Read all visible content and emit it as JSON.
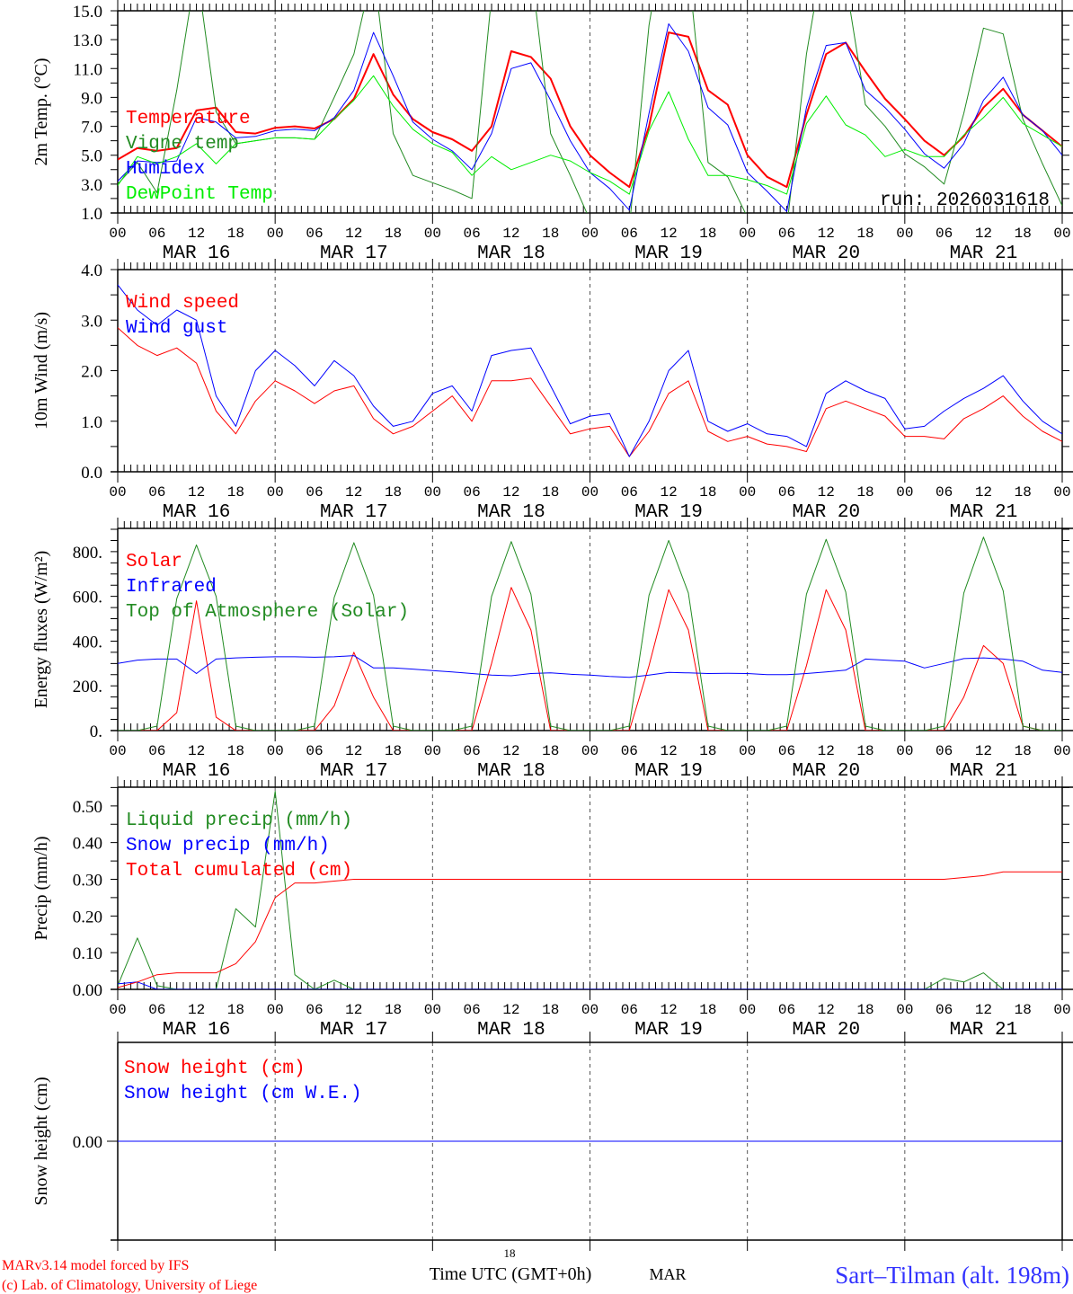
{
  "time_axis": {
    "hours_ticks": [
      "00",
      "06",
      "12",
      "18"
    ],
    "days": [
      "MAR 16",
      "MAR 17",
      "MAR 18",
      "MAR 19",
      "MAR 20",
      "MAR 21"
    ],
    "end_label": "00",
    "step_hours": 3
  },
  "run_label": "run: 2026031618",
  "footer": {
    "model": "MARv3.14 model forced by IFS",
    "copyright": "(c) Lab. of Climatology, University of Liege",
    "small_label": "18",
    "xlabel": "Time UTC (GMT+0h)",
    "mar": "MAR",
    "station": "Sart–Tilman (alt. 198m)"
  },
  "chart_data": [
    {
      "type": "line",
      "ylabel": "2m Temp. (°C)",
      "ylim": [
        1,
        15
      ],
      "yminor": 1,
      "yticks": [
        15,
        13,
        11,
        9,
        7,
        5,
        3,
        1
      ],
      "yticklabels": [
        "15.0",
        "13.0",
        "11.0",
        "9.0",
        "7.0",
        "5.0",
        "3.0",
        "1.0"
      ],
      "show_xlabels": true,
      "series": [
        {
          "name": "Temperature",
          "color": "#ff0000",
          "width": 2,
          "values": [
            4.7,
            5.5,
            5.3,
            5.5,
            8.1,
            8.3,
            6.6,
            6.5,
            6.9,
            7.0,
            6.85,
            7.5,
            8.9,
            12.0,
            9.2,
            7.5,
            6.6,
            6.1,
            5.3,
            7.0,
            12.2,
            11.8,
            10.3,
            7.0,
            5.0,
            3.8,
            2.8,
            7.0,
            13.5,
            13.2,
            9.5,
            8.5,
            5.0,
            3.5,
            2.8,
            7.8,
            12.0,
            12.8,
            10.8,
            8.9,
            7.5,
            6.0,
            5.0,
            6.3,
            8.3,
            9.6,
            7.8,
            6.7,
            5.6
          ]
        },
        {
          "name": "Vigne temp",
          "color": "#228b22",
          "width": 1,
          "values": [
            3.0,
            4.5,
            2.4,
            9.5,
            18,
            8.0,
            5.8,
            6.0,
            6.2,
            6.2,
            6.1,
            9.0,
            12.0,
            18,
            6.5,
            3.6,
            3.1,
            2.6,
            2.0,
            16,
            22,
            18,
            6.5,
            3.6,
            0.5,
            -1,
            0,
            14,
            22,
            18,
            4.5,
            3.5,
            0.7,
            -1,
            0,
            12,
            20,
            17,
            8.5,
            7.0,
            5.1,
            4.2,
            3.0,
            7.9,
            13.8,
            13.4,
            7.5,
            4.4,
            1.5
          ]
        },
        {
          "name": "Humidex",
          "color": "#0000ff",
          "width": 1,
          "values": [
            3.2,
            4.6,
            4.5,
            4.6,
            7.6,
            7.3,
            6.2,
            6.3,
            6.7,
            6.8,
            6.7,
            7.6,
            9.5,
            13.5,
            10.5,
            7.3,
            6.1,
            5.3,
            4.0,
            6.5,
            11.0,
            11.4,
            8.8,
            6.0,
            3.8,
            2.7,
            1.2,
            7.9,
            14.1,
            12.2,
            8.3,
            7.1,
            3.8,
            2.5,
            1.1,
            8.3,
            12.6,
            12.8,
            9.5,
            8.3,
            6.8,
            5.1,
            4.1,
            5.8,
            8.8,
            10.4,
            7.8,
            6.7,
            5.0
          ]
        },
        {
          "name": "DewPoint Temp",
          "color": "#00ee00",
          "width": 1,
          "values": [
            2.9,
            4.9,
            4.4,
            4.9,
            5.8,
            4.4,
            5.8,
            6.0,
            6.2,
            6.2,
            6.1,
            7.5,
            8.8,
            10.5,
            8.4,
            6.8,
            5.8,
            5.2,
            3.6,
            4.9,
            4.0,
            4.5,
            5.0,
            4.6,
            3.8,
            3.2,
            2.3,
            6.7,
            9.4,
            6.1,
            3.6,
            3.6,
            3.3,
            2.9,
            2.3,
            7.2,
            9.1,
            7.1,
            6.4,
            4.9,
            5.4,
            4.9,
            4.9,
            6.4,
            7.6,
            9.0,
            7.2,
            6.4,
            5.6
          ]
        }
      ]
    },
    {
      "type": "line",
      "ylabel": "10m Wind (m/s)",
      "ylim": [
        0,
        4
      ],
      "yminor": 0.5,
      "yticks": [
        4,
        3,
        2,
        1,
        0
      ],
      "yticklabels": [
        "4.0",
        "3.0",
        "2.0",
        "1.0",
        "0.0"
      ],
      "show_xlabels": true,
      "series": [
        {
          "name": "Wind speed",
          "color": "#ff0000",
          "width": 1,
          "values": [
            2.85,
            2.5,
            2.3,
            2.45,
            2.15,
            1.2,
            0.75,
            1.4,
            1.8,
            1.6,
            1.35,
            1.6,
            1.7,
            1.05,
            0.75,
            0.9,
            1.2,
            1.5,
            1.0,
            1.8,
            1.8,
            1.85,
            1.3,
            0.75,
            0.85,
            0.9,
            0.3,
            0.8,
            1.55,
            1.8,
            0.8,
            0.6,
            0.7,
            0.55,
            0.5,
            0.4,
            1.25,
            1.4,
            1.25,
            1.1,
            0.7,
            0.7,
            0.65,
            1.05,
            1.25,
            1.5,
            1.1,
            0.8,
            0.6
          ]
        },
        {
          "name": "Wind gust",
          "color": "#0000ff",
          "width": 1,
          "values": [
            3.7,
            3.2,
            2.9,
            3.2,
            3.0,
            1.5,
            0.9,
            2.0,
            2.4,
            2.1,
            1.7,
            2.2,
            1.9,
            1.3,
            0.9,
            1.0,
            1.55,
            1.7,
            1.2,
            2.3,
            2.4,
            2.45,
            1.7,
            0.95,
            1.1,
            1.15,
            0.3,
            1.0,
            2.0,
            2.4,
            1.0,
            0.8,
            0.95,
            0.75,
            0.7,
            0.5,
            1.55,
            1.8,
            1.6,
            1.45,
            0.85,
            0.9,
            1.2,
            1.45,
            1.65,
            1.9,
            1.4,
            1.0,
            0.75
          ]
        }
      ]
    },
    {
      "type": "line",
      "ylabel": "Energy fluxes (W/m²)",
      "ylim": [
        0,
        904
      ],
      "yminor": 50,
      "yticks": [
        800,
        600,
        400,
        200,
        0
      ],
      "yticklabels": [
        "800.",
        "600.",
        "400.",
        "200.",
        "0."
      ],
      "show_xlabels": true,
      "series": [
        {
          "name": "Solar",
          "color": "#ff0000",
          "width": 1,
          "values": [
            0,
            0,
            0,
            80,
            580,
            60,
            0,
            0,
            0,
            0,
            0,
            110,
            350,
            150,
            0,
            0,
            0,
            0,
            0,
            300,
            640,
            450,
            0,
            0,
            0,
            0,
            0,
            290,
            630,
            450,
            0,
            0,
            0,
            0,
            0,
            290,
            630,
            450,
            0,
            0,
            0,
            0,
            0,
            150,
            380,
            300,
            20,
            0,
            0
          ]
        },
        {
          "name": "Infrared",
          "color": "#0000ff",
          "width": 1,
          "values": [
            300,
            315,
            320,
            320,
            255,
            320,
            325,
            328,
            330,
            330,
            328,
            330,
            335,
            280,
            280,
            275,
            268,
            262,
            255,
            248,
            245,
            255,
            258,
            252,
            248,
            242,
            238,
            248,
            260,
            258,
            255,
            256,
            255,
            250,
            250,
            255,
            262,
            270,
            320,
            315,
            310,
            280,
            300,
            322,
            325,
            320,
            310,
            270,
            260
          ]
        },
        {
          "name": "Top of Atmosphere (Solar)",
          "color": "#228b22",
          "width": 1,
          "values": [
            0,
            0,
            20,
            590,
            830,
            600,
            20,
            0,
            0,
            0,
            20,
            595,
            840,
            605,
            20,
            0,
            0,
            0,
            20,
            600,
            845,
            610,
            20,
            0,
            0,
            0,
            20,
            605,
            850,
            615,
            20,
            0,
            0,
            0,
            20,
            610,
            855,
            620,
            20,
            0,
            0,
            0,
            20,
            615,
            865,
            625,
            20,
            0,
            0
          ]
        }
      ]
    },
    {
      "type": "line",
      "ylabel": "Precip (mm/h)",
      "ylim": [
        0,
        0.551
      ],
      "yminor": 0.05,
      "yticks": [
        0.5,
        0.4,
        0.3,
        0.2,
        0.1,
        0.0
      ],
      "yticklabels": [
        "0.50",
        "0.40",
        "0.30",
        "0.20",
        "0.10",
        "0.00"
      ],
      "show_xlabels": true,
      "series": [
        {
          "name": "Liquid precip (mm/h)",
          "color": "#228b22",
          "width": 1,
          "values": [
            0.01,
            0.14,
            0.01,
            0,
            0,
            0,
            0.22,
            0.17,
            0.54,
            0.04,
            0,
            0.025,
            0,
            0,
            0,
            0,
            0,
            0,
            0,
            0,
            0,
            0,
            0,
            0,
            0,
            0,
            0,
            0,
            0,
            0,
            0,
            0,
            0,
            0,
            0,
            0,
            0,
            0,
            0,
            0,
            0,
            0,
            0.03,
            0.02,
            0.045,
            0,
            0,
            0,
            0
          ]
        },
        {
          "name": "Snow precip (mm/h)",
          "color": "#0000ff",
          "width": 1,
          "values": [
            0.015,
            0.02,
            0,
            0,
            0,
            0,
            0,
            0,
            0,
            0,
            0,
            0,
            0,
            0,
            0,
            0,
            0,
            0,
            0,
            0,
            0,
            0,
            0,
            0,
            0,
            0,
            0,
            0,
            0,
            0,
            0,
            0,
            0,
            0,
            0,
            0,
            0,
            0,
            0,
            0,
            0,
            0,
            0,
            0,
            0,
            0,
            0,
            0,
            0
          ]
        },
        {
          "name": "Total cumulated (cm)",
          "color": "#ff0000",
          "width": 1,
          "values": [
            0.005,
            0.02,
            0.04,
            0.045,
            0.045,
            0.045,
            0.07,
            0.13,
            0.25,
            0.29,
            0.29,
            0.295,
            0.3,
            0.3,
            0.3,
            0.3,
            0.3,
            0.3,
            0.3,
            0.3,
            0.3,
            0.3,
            0.3,
            0.3,
            0.3,
            0.3,
            0.3,
            0.3,
            0.3,
            0.3,
            0.3,
            0.3,
            0.3,
            0.3,
            0.3,
            0.3,
            0.3,
            0.3,
            0.3,
            0.3,
            0.3,
            0.3,
            0.3,
            0.305,
            0.31,
            0.32,
            0.32,
            0.32,
            0.32
          ]
        }
      ]
    },
    {
      "type": "line",
      "ylabel": "Snow height (cm)",
      "ylim": [
        -1,
        1
      ],
      "yminor": 0,
      "yticks": [
        0
      ],
      "yticklabels": [
        "0.00"
      ],
      "show_xlabels": false,
      "series": [
        {
          "name": "Snow height (cm)",
          "color": "#ff0000",
          "width": 1,
          "values": [
            0,
            0
          ]
        },
        {
          "name": "Snow height (cm W.E.)",
          "color": "#0000ff",
          "width": 1,
          "values": [
            0,
            0
          ]
        }
      ]
    }
  ]
}
